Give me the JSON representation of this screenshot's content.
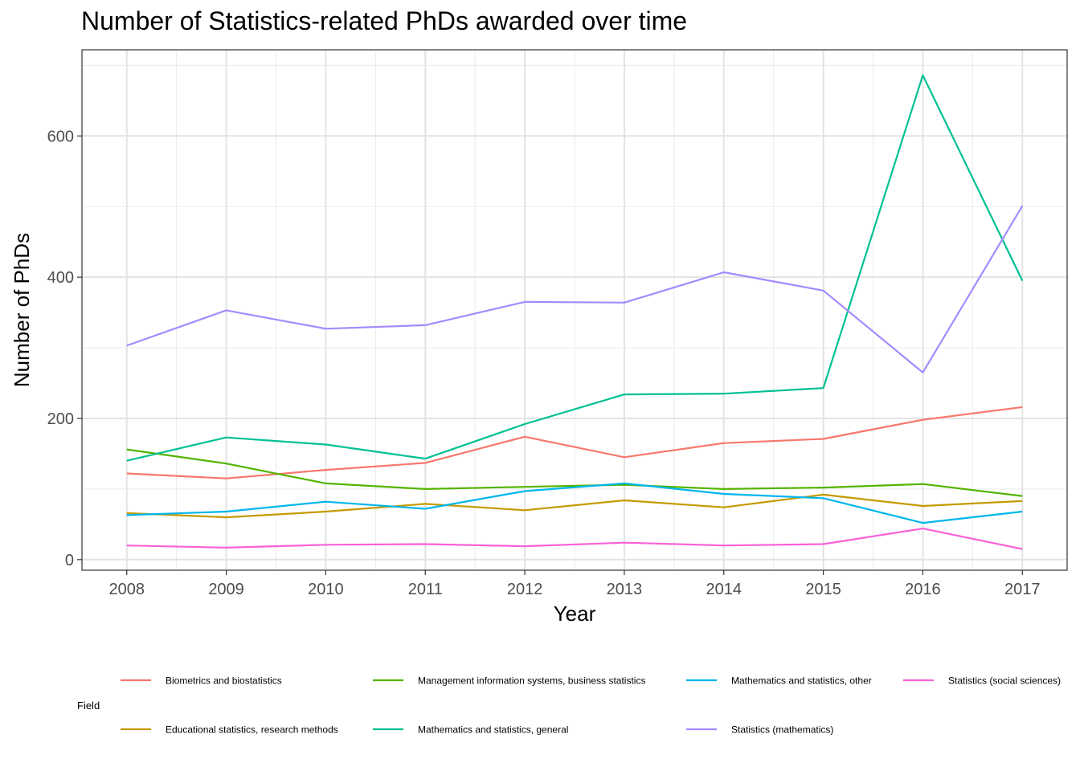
{
  "chart_data": {
    "type": "line",
    "title": "Number of Statistics-related PhDs awarded over time",
    "xlabel": "Year",
    "ylabel": "Number of PhDs",
    "x": [
      2008,
      2009,
      2010,
      2011,
      2012,
      2013,
      2014,
      2015,
      2016,
      2017
    ],
    "x_tick_labels": [
      "2008",
      "2009",
      "2010",
      "2011",
      "2012",
      "2013",
      "2014",
      "2015",
      "2016",
      "2017"
    ],
    "ylim": [
      -15,
      722
    ],
    "y_ticks": [
      0,
      200,
      400,
      600
    ],
    "y_tick_labels": [
      "0",
      "200",
      "400",
      "600"
    ],
    "grid": true,
    "legend": {
      "title": "Field",
      "position": "bottom"
    },
    "series": [
      {
        "name": "Biometrics and biostatistics",
        "color": "#F8766D",
        "values": [
          122,
          115,
          127,
          137,
          174,
          145,
          165,
          171,
          198,
          216
        ]
      },
      {
        "name": "Educational statistics, research methods",
        "color": "#C49A00",
        "values": [
          66,
          60,
          68,
          79,
          70,
          84,
          74,
          92,
          76,
          83
        ]
      },
      {
        "name": "Management information systems, business statistics",
        "color": "#53B400",
        "values": [
          156,
          136,
          108,
          100,
          103,
          106,
          100,
          102,
          107,
          90
        ]
      },
      {
        "name": "Mathematics and statistics, general",
        "color": "#00C094",
        "values": [
          140,
          173,
          163,
          143,
          192,
          234,
          235,
          243,
          686,
          395
        ]
      },
      {
        "name": "Mathematics and statistics, other",
        "color": "#00B6EB",
        "values": [
          63,
          68,
          82,
          72,
          97,
          108,
          93,
          87,
          52,
          68
        ]
      },
      {
        "name": "Statistics (mathematics)",
        "color": "#A58AFF",
        "values": [
          303,
          353,
          327,
          332,
          365,
          364,
          407,
          381,
          265,
          501
        ]
      },
      {
        "name": "Statistics (social sciences)",
        "color": "#FB61D7",
        "values": [
          20,
          17,
          21,
          22,
          19,
          24,
          20,
          22,
          44,
          15
        ]
      }
    ]
  }
}
